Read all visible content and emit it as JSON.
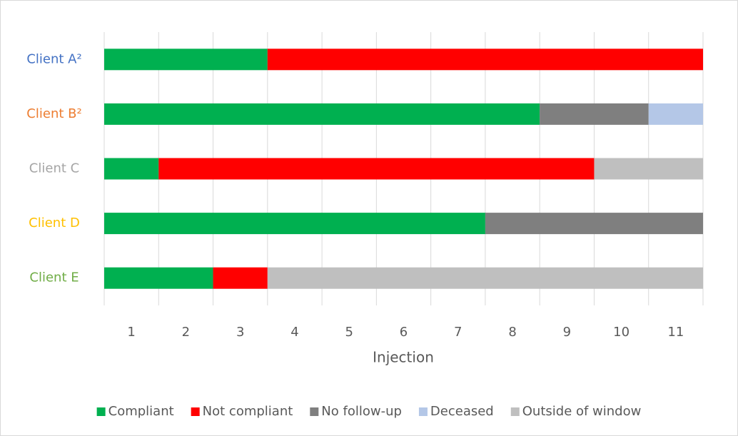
{
  "chart_data": {
    "type": "stacked_barh",
    "categories": [
      "Client A²",
      "Client B²",
      "Client C",
      "Client D",
      "Client E"
    ],
    "category_colors": [
      "#4472c4",
      "#ed7d31",
      "#a5a5a5",
      "#ffc000",
      "#70ad47"
    ],
    "series": [
      {
        "name": "Compliant",
        "color": "#00b050",
        "values": [
          3,
          8,
          1,
          7,
          2
        ]
      },
      {
        "name": "Not compliant",
        "color": "#ff0000",
        "values": [
          8,
          0,
          8,
          0,
          1
        ]
      },
      {
        "name": "No follow-up",
        "color": "#7f7f7f",
        "values": [
          0,
          2,
          0,
          4,
          0
        ]
      },
      {
        "name": "Deceased",
        "color": "#b4c7e7",
        "values": [
          0,
          1,
          0,
          0,
          0
        ]
      },
      {
        "name": "Outside of window",
        "color": "#bfbfbf",
        "values": [
          0,
          0,
          2,
          0,
          8
        ]
      }
    ],
    "xlabel": "Injection",
    "xlim": [
      0,
      11
    ],
    "xticks": [
      {
        "value": 0.5,
        "label": "1"
      },
      {
        "value": 1.5,
        "label": "2"
      },
      {
        "value": 2.5,
        "label": "3"
      },
      {
        "value": 3.5,
        "label": "4"
      },
      {
        "value": 4.5,
        "label": "5"
      },
      {
        "value": 5.5,
        "label": "6"
      },
      {
        "value": 6.5,
        "label": "7"
      },
      {
        "value": 7.5,
        "label": "8"
      },
      {
        "value": 8.5,
        "label": "9"
      },
      {
        "value": 9.5,
        "label": "10"
      },
      {
        "value": 10.5,
        "label": "11"
      }
    ],
    "xgrid": [
      0,
      1,
      2,
      3,
      4,
      5,
      6,
      7,
      8,
      9,
      10,
      11
    ],
    "legend": "bottom"
  }
}
